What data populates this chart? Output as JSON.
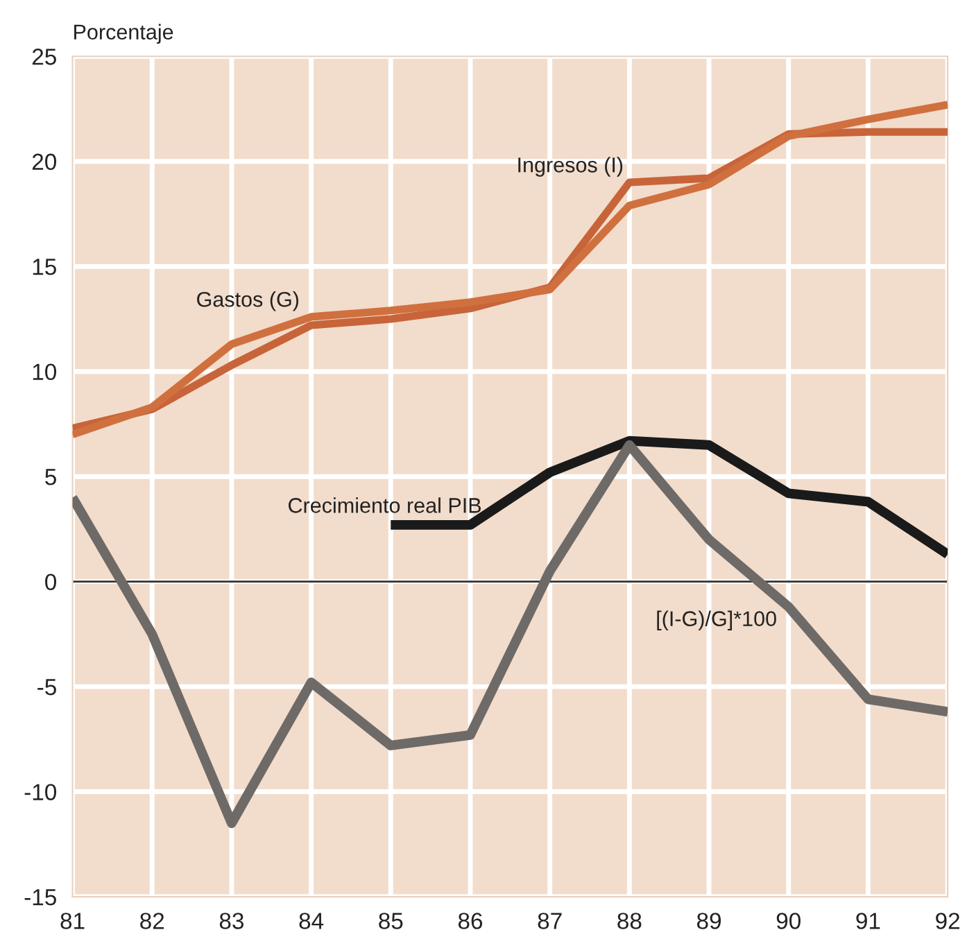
{
  "chart_data": {
    "type": "line",
    "ylabel": "Porcentaje",
    "x": [
      81,
      82,
      83,
      84,
      85,
      86,
      87,
      88,
      89,
      90,
      91,
      92
    ],
    "series": [
      {
        "name": "Ingresos (I)",
        "color": "#c8643a",
        "values": [
          7.3,
          8.2,
          10.3,
          12.2,
          12.5,
          13.0,
          14.0,
          19.0,
          19.2,
          21.3,
          21.4,
          21.4
        ]
      },
      {
        "name": "Gastos (G)",
        "color": "#d0703f",
        "values": [
          7.0,
          8.3,
          11.3,
          12.6,
          12.9,
          13.3,
          13.9,
          17.9,
          18.9,
          21.2,
          22.0,
          22.7
        ]
      },
      {
        "name": "Crecimiento real PIB",
        "color": "#1a1a1a",
        "values": [
          null,
          null,
          null,
          null,
          2.7,
          2.7,
          5.2,
          6.7,
          6.5,
          4.2,
          3.8,
          1.3
        ]
      },
      {
        "name": "[(I-G)/G]*100",
        "color": "#6e6a68",
        "values": [
          4.0,
          -2.5,
          -11.5,
          -4.8,
          -7.8,
          -7.3,
          0.5,
          6.5,
          2.0,
          -1.2,
          -5.6,
          -6.2
        ]
      }
    ],
    "ref_lines": [
      {
        "axis": "y",
        "value": 0,
        "color": "#333333"
      }
    ],
    "xlim": [
      81,
      92
    ],
    "ylim": [
      -15,
      25
    ],
    "xticks": [
      81,
      82,
      83,
      84,
      85,
      86,
      87,
      88,
      89,
      90,
      91,
      92
    ],
    "yticks": [
      -15,
      -10,
      -5,
      0,
      5,
      10,
      15,
      20,
      25
    ],
    "grid": true,
    "legend": false,
    "marker": "none",
    "line_style": "solid"
  }
}
